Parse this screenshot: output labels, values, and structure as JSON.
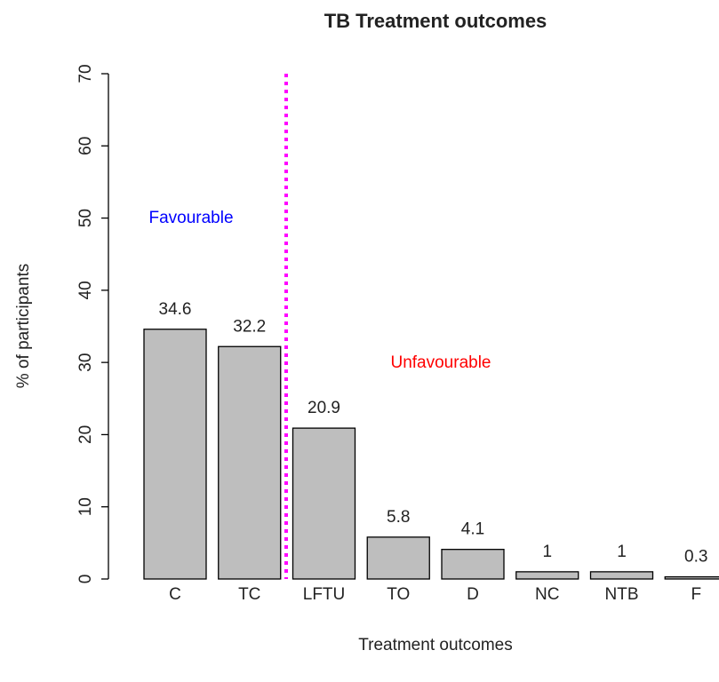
{
  "chart_data": {
    "type": "bar",
    "title": "TB Treatment outcomes",
    "x_label": "Treatment outcomes",
    "y_label": "% of participants",
    "categories": [
      "C",
      "TC",
      "LFTU",
      "TO",
      "D",
      "NC",
      "NTB",
      "F"
    ],
    "values": [
      34.6,
      32.2,
      20.9,
      5.8,
      4.1,
      1,
      1,
      0.3
    ],
    "color": "#bebebe",
    "ylim": [
      0,
      70
    ],
    "yticks": [
      0,
      10,
      20,
      30,
      40,
      50,
      60,
      70
    ],
    "annotations": [
      {
        "text": "Favourable",
        "color": "#0000ff"
      },
      {
        "text": "Unfavourable",
        "color": "#ff0000"
      }
    ],
    "divider_color": "#ff00ff"
  }
}
